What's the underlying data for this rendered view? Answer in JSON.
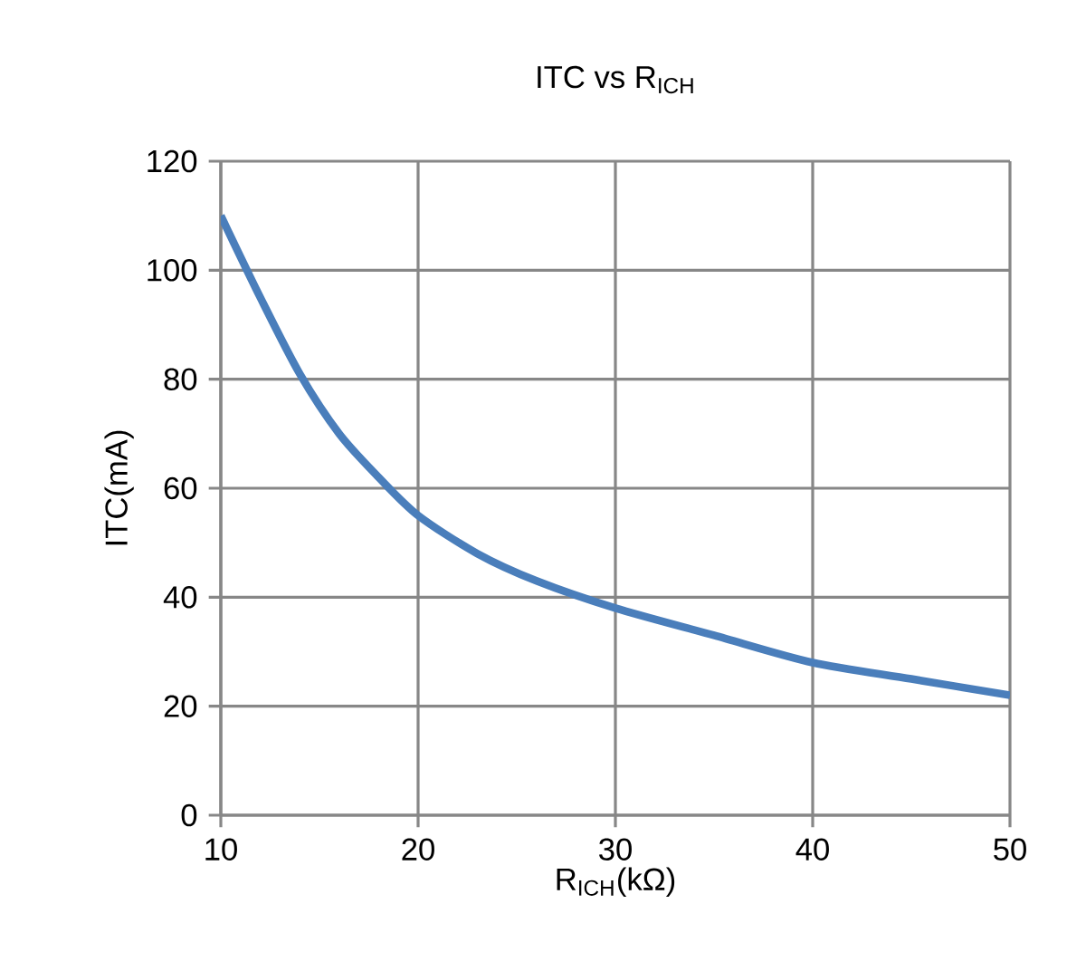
{
  "chart_data": {
    "type": "line",
    "title": "ITC  vs  R$_{ICH}$",
    "xlabel": "R$_{ICH}$(kΩ)",
    "ylabel": "ITC(mA)",
    "x": [
      10,
      12,
      14,
      16,
      18,
      20,
      23,
      26,
      30,
      35,
      40,
      45,
      50
    ],
    "series": [
      {
        "color": "#4a7ebb",
        "values": [
          110,
          95,
          81,
          70,
          62,
          55,
          48,
          43,
          38,
          33,
          28,
          25,
          22
        ]
      }
    ],
    "xlim": [
      10,
      50
    ],
    "xticks": [
      10,
      20,
      30,
      40,
      50
    ],
    "ylim": [
      0,
      120
    ],
    "yticks": [
      0,
      20,
      40,
      60,
      80,
      100,
      120
    ],
    "grid": true,
    "marker": "none",
    "line_style": "solid"
  }
}
